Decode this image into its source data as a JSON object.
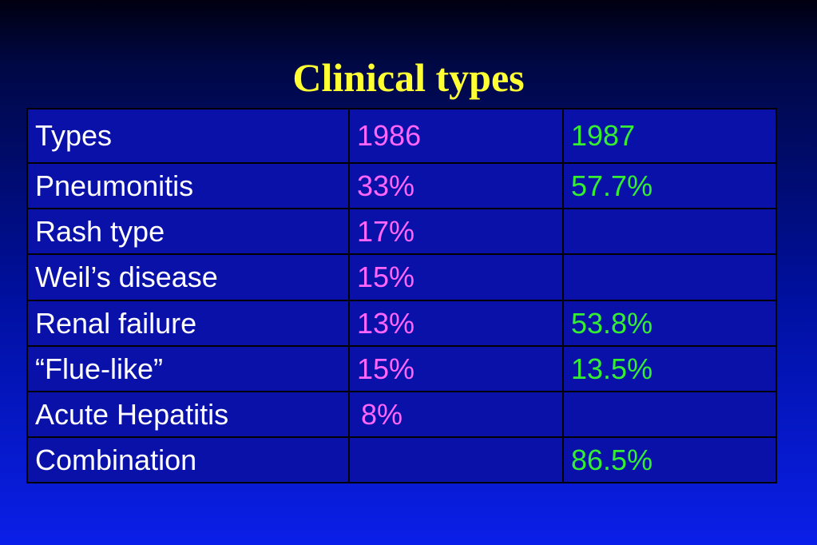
{
  "slide": {
    "title": "Clinical types"
  },
  "table": {
    "headers": {
      "types": "Types",
      "year1": "1986",
      "year2": "1987"
    },
    "rows": [
      {
        "type": "Pneumonitis",
        "y1986": "33%",
        "y1987": "57.7%"
      },
      {
        "type": "Rash type",
        "y1986": "17%",
        "y1987": ""
      },
      {
        "type": "Weil’s disease",
        "y1986": "15%",
        "y1987": ""
      },
      {
        "type": "Renal failure",
        "y1986": "13%",
        "y1987": "53.8%"
      },
      {
        "type": "“Flue-like”",
        "y1986": "15%",
        "y1987": "13.5%"
      },
      {
        "type": "Acute Hepatitis",
        "y1986": "8%",
        "y1987": ""
      },
      {
        "type": "Combination",
        "y1986": "",
        "y1987": "86.5%"
      }
    ]
  },
  "colors": {
    "title": "#ffff33",
    "type_text": "#ffffff",
    "year1986_text": "#ff66ff",
    "year1987_text": "#33ee33",
    "cell_background": "#0a11a8"
  }
}
